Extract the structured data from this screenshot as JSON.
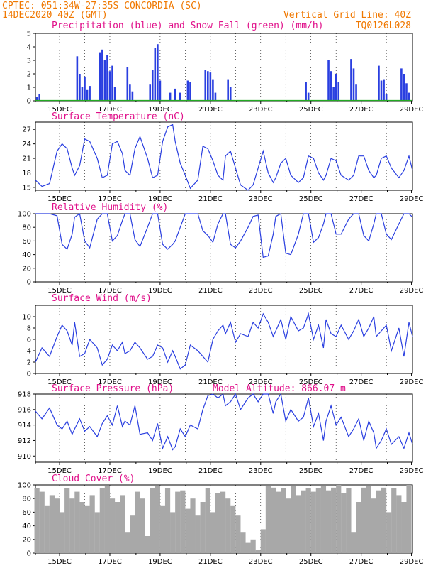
{
  "header": {
    "line1_left": "CPTEC:  051:34W-27:35S  CONCORDIA (SC)",
    "line2_left": "14DEC2020 40Z (GMT)",
    "line1_right": "Vertical Grid Line: 40Z",
    "line2_right": "TQ0126L028"
  },
  "colors": {
    "header": "#f07800",
    "panel_title": "#e0108a",
    "line": "#2a3fe0",
    "precip": "#2a3fe0",
    "snow": "#22aa22",
    "cloud": "#a8a8a8"
  },
  "x_ticks": [
    "15DEC",
    "17DEC",
    "19DEC",
    "21DEC",
    "23DEC",
    "25DEC",
    "27DEC",
    "29DEC"
  ],
  "x_tick_days": [
    15,
    17,
    19,
    21,
    23,
    25,
    27,
    29
  ],
  "chart_data": [
    {
      "type": "bar",
      "id": "precip",
      "title": "Precipitation (blue) and Snow Fall (green) (mm/h)",
      "xlim": [
        14.04,
        29.04
      ],
      "ylim": [
        0,
        5
      ],
      "yticks": [
        0,
        1,
        2,
        3,
        4,
        5
      ],
      "series": [
        {
          "name": "Precipitation",
          "x": [
            14.1,
            14.2,
            15.7,
            15.8,
            15.9,
            16.0,
            16.1,
            16.2,
            16.6,
            16.7,
            16.8,
            16.9,
            17.0,
            17.1,
            17.2,
            17.7,
            17.8,
            17.9,
            18.6,
            18.7,
            18.8,
            18.9,
            19.0,
            19.4,
            19.6,
            19.8,
            20.1,
            20.2,
            20.8,
            20.9,
            21.0,
            21.1,
            21.2,
            21.7,
            21.8,
            24.8,
            24.9,
            25.7,
            25.8,
            25.9,
            26.0,
            26.1,
            26.6,
            26.7,
            26.8,
            27.7,
            27.8,
            27.9,
            28.0,
            28.6,
            28.7,
            28.8,
            28.9
          ],
          "values": [
            0.3,
            0.5,
            3.3,
            2.0,
            1.0,
            1.8,
            0.8,
            1.1,
            3.6,
            3.8,
            3.0,
            3.4,
            2.2,
            2.6,
            1.0,
            2.5,
            1.2,
            0.7,
            1.2,
            2.3,
            3.9,
            4.2,
            1.5,
            0.6,
            0.9,
            0.6,
            1.5,
            1.4,
            2.3,
            2.2,
            2.1,
            1.6,
            0.6,
            1.6,
            1.0,
            1.4,
            0.6,
            3.0,
            2.2,
            1.0,
            2.0,
            1.4,
            3.1,
            2.4,
            1.2,
            2.6,
            1.5,
            1.6,
            0.5,
            2.4,
            2.0,
            1.3,
            0.6
          ]
        },
        {
          "name": "Snow Fall",
          "x": [],
          "values": []
        }
      ]
    },
    {
      "type": "line",
      "id": "temp",
      "title": "Surface Temperature (nC)",
      "xlim": [
        14.04,
        29.04
      ],
      "ylim": [
        14.4,
        28.5
      ],
      "yticks": [
        15,
        18,
        21,
        24,
        27
      ],
      "series": [
        {
          "name": "Surface Temperature",
          "x": [
            14.04,
            14.3,
            14.6,
            14.9,
            15.1,
            15.3,
            15.5,
            15.6,
            15.8,
            16.0,
            16.2,
            16.5,
            16.7,
            16.9,
            17.1,
            17.3,
            17.5,
            17.6,
            17.8,
            18.0,
            18.2,
            18.5,
            18.7,
            18.9,
            19.1,
            19.3,
            19.5,
            19.6,
            19.8,
            20.0,
            20.2,
            20.5,
            20.7,
            20.9,
            21.1,
            21.3,
            21.5,
            21.6,
            21.8,
            22.0,
            22.2,
            22.5,
            22.7,
            22.9,
            23.1,
            23.3,
            23.5,
            23.6,
            23.8,
            24.0,
            24.2,
            24.5,
            24.7,
            24.9,
            25.1,
            25.3,
            25.5,
            25.6,
            25.8,
            26.0,
            26.2,
            26.5,
            26.7,
            26.9,
            27.1,
            27.3,
            27.5,
            27.6,
            27.8,
            28.0,
            28.2,
            28.5,
            28.7,
            28.9,
            29.04
          ],
          "values": [
            16.5,
            15.2,
            15.8,
            22.5,
            24.0,
            23.0,
            19.0,
            17.5,
            19.5,
            25.0,
            24.5,
            21.0,
            17.0,
            17.5,
            24.0,
            24.5,
            22.0,
            18.5,
            17.5,
            23.0,
            25.5,
            21.0,
            17.0,
            17.5,
            24.5,
            27.5,
            28.0,
            24.5,
            20.0,
            17.5,
            14.8,
            16.5,
            23.5,
            23.0,
            20.5,
            17.5,
            16.5,
            21.5,
            22.5,
            19.0,
            15.5,
            14.3,
            15.5,
            19.0,
            22.5,
            18.0,
            16.0,
            17.0,
            20.0,
            21.0,
            17.5,
            16.0,
            17.0,
            21.5,
            21.0,
            18.0,
            16.5,
            17.5,
            21.0,
            20.5,
            17.5,
            16.5,
            17.5,
            21.5,
            21.5,
            18.5,
            17.0,
            17.5,
            21.0,
            21.5,
            19.0,
            17.0,
            18.5,
            21.5,
            18.5
          ]
        }
      ]
    },
    {
      "type": "line",
      "id": "rh",
      "title": "Relative Humidity (%)",
      "xlim": [
        14.04,
        29.04
      ],
      "ylim": [
        0,
        100
      ],
      "yticks": [
        0,
        20,
        40,
        60,
        80,
        100
      ],
      "series": [
        {
          "name": "Relative Humidity",
          "x": [
            14.04,
            14.3,
            14.6,
            14.9,
            15.1,
            15.3,
            15.5,
            15.6,
            15.8,
            16.0,
            16.2,
            16.5,
            16.7,
            16.9,
            17.1,
            17.3,
            17.5,
            17.6,
            17.8,
            18.0,
            18.2,
            18.5,
            18.7,
            18.9,
            19.1,
            19.3,
            19.5,
            19.6,
            19.8,
            20.0,
            20.2,
            20.5,
            20.7,
            20.9,
            21.1,
            21.3,
            21.5,
            21.6,
            21.8,
            22.0,
            22.2,
            22.5,
            22.7,
            22.9,
            23.1,
            23.3,
            23.5,
            23.6,
            23.8,
            24.0,
            24.2,
            24.5,
            24.7,
            24.9,
            25.1,
            25.3,
            25.5,
            25.6,
            25.8,
            26.0,
            26.2,
            26.5,
            26.7,
            26.9,
            27.1,
            27.3,
            27.5,
            27.6,
            27.8,
            28.0,
            28.2,
            28.5,
            28.7,
            28.9,
            29.04
          ],
          "values": [
            100,
            100,
            100,
            97,
            55,
            48,
            70,
            95,
            100,
            60,
            50,
            92,
            100,
            100,
            60,
            68,
            90,
            100,
            100,
            62,
            52,
            80,
            100,
            100,
            55,
            48,
            55,
            60,
            80,
            100,
            100,
            100,
            75,
            68,
            58,
            85,
            100,
            100,
            55,
            50,
            60,
            80,
            96,
            98,
            36,
            38,
            70,
            96,
            100,
            42,
            40,
            70,
            100,
            100,
            58,
            65,
            85,
            100,
            100,
            70,
            70,
            92,
            100,
            100,
            68,
            60,
            85,
            100,
            100,
            70,
            62,
            85,
            100,
            100,
            95
          ]
        }
      ]
    },
    {
      "type": "line",
      "id": "wind",
      "title": "Surface Wind (m/s)",
      "xlim": [
        14.04,
        29.04
      ],
      "ylim": [
        0,
        12
      ],
      "yticks": [
        0,
        2,
        4,
        6,
        8,
        10
      ],
      "series": [
        {
          "name": "Surface Wind",
          "x": [
            14.04,
            14.3,
            14.6,
            14.9,
            15.1,
            15.3,
            15.5,
            15.6,
            15.8,
            16.0,
            16.2,
            16.5,
            16.7,
            16.9,
            17.1,
            17.3,
            17.5,
            17.6,
            17.8,
            18.0,
            18.2,
            18.5,
            18.7,
            18.9,
            19.1,
            19.3,
            19.5,
            19.6,
            19.8,
            20.0,
            20.2,
            20.5,
            20.7,
            20.9,
            21.1,
            21.3,
            21.5,
            21.6,
            21.8,
            22.0,
            22.2,
            22.5,
            22.7,
            22.9,
            23.1,
            23.3,
            23.5,
            23.6,
            23.8,
            24.0,
            24.2,
            24.5,
            24.7,
            24.9,
            25.1,
            25.3,
            25.5,
            25.6,
            25.8,
            26.0,
            26.2,
            26.5,
            26.7,
            26.9,
            27.1,
            27.3,
            27.5,
            27.6,
            27.8,
            28.0,
            28.2,
            28.5,
            28.7,
            28.9,
            29.04
          ],
          "values": [
            2.0,
            4.5,
            3.0,
            6.5,
            8.5,
            7.5,
            5.0,
            9.0,
            3.0,
            3.5,
            6.0,
            4.5,
            1.5,
            2.5,
            5.0,
            4.0,
            5.5,
            3.5,
            4.0,
            5.5,
            4.5,
            2.5,
            3.0,
            5.0,
            4.5,
            2.0,
            4.0,
            3.0,
            0.8,
            1.5,
            5.0,
            4.0,
            3.0,
            2.0,
            6.0,
            7.5,
            8.5,
            7.0,
            9.0,
            5.5,
            7.0,
            6.5,
            9.0,
            8.0,
            10.5,
            9.0,
            6.5,
            7.5,
            9.5,
            6.0,
            10.0,
            7.5,
            8.0,
            10.5,
            6.0,
            8.5,
            4.5,
            9.5,
            7.0,
            6.5,
            8.5,
            6.0,
            7.5,
            9.5,
            6.5,
            8.0,
            10.0,
            6.5,
            7.5,
            8.5,
            4.0,
            8.0,
            3.0,
            9.0,
            6.5
          ]
        }
      ]
    },
    {
      "type": "line",
      "id": "press",
      "title": "Surface Pressure (hPa)",
      "annotation": "Model Altitude: 866.07 m",
      "xlim": [
        14.04,
        29.04
      ],
      "ylim": [
        909.2,
        918
      ],
      "yticks": [
        910,
        912,
        914,
        916,
        918
      ],
      "series": [
        {
          "name": "Surface Pressure",
          "x": [
            14.04,
            14.3,
            14.6,
            14.9,
            15.1,
            15.3,
            15.5,
            15.6,
            15.8,
            16.0,
            16.2,
            16.5,
            16.7,
            16.9,
            17.1,
            17.3,
            17.5,
            17.6,
            17.8,
            18.0,
            18.2,
            18.5,
            18.7,
            18.9,
            19.1,
            19.3,
            19.5,
            19.6,
            19.8,
            20.0,
            20.2,
            20.5,
            20.7,
            20.9,
            21.1,
            21.3,
            21.5,
            21.6,
            21.8,
            22.0,
            22.2,
            22.5,
            22.7,
            22.9,
            23.1,
            23.3,
            23.5,
            23.6,
            23.8,
            24.0,
            24.2,
            24.5,
            24.7,
            24.9,
            25.1,
            25.3,
            25.5,
            25.6,
            25.8,
            26.0,
            26.2,
            26.5,
            26.7,
            26.9,
            27.1,
            27.3,
            27.5,
            27.6,
            27.8,
            28.0,
            28.2,
            28.5,
            28.7,
            28.9,
            29.04
          ],
          "values": [
            915.8,
            914.8,
            916.2,
            914.0,
            913.5,
            914.5,
            912.8,
            913.5,
            914.8,
            913.2,
            913.8,
            912.5,
            914.2,
            915.2,
            914.0,
            916.5,
            913.8,
            914.5,
            914.0,
            916.5,
            912.8,
            913.0,
            912.0,
            914.2,
            911.0,
            912.5,
            910.8,
            911.2,
            913.5,
            912.5,
            914.0,
            913.5,
            916.0,
            917.8,
            918.0,
            917.5,
            918.0,
            916.5,
            917.0,
            918.0,
            916.0,
            917.5,
            918.5,
            917.0,
            918.5,
            918.0,
            915.5,
            917.0,
            918.0,
            914.5,
            916.0,
            914.5,
            915.0,
            917.5,
            913.8,
            915.5,
            912.0,
            914.5,
            916.5,
            914.0,
            915.0,
            912.5,
            913.5,
            914.8,
            912.0,
            914.5,
            913.0,
            911.0,
            912.0,
            913.5,
            911.5,
            912.5,
            911.0,
            913.0,
            911.5
          ]
        }
      ]
    },
    {
      "type": "bar",
      "id": "cloud",
      "title": "Cloud Cover (%)",
      "xlim": [
        14.04,
        29.04
      ],
      "ylim": [
        0,
        100
      ],
      "yticks": [
        0,
        20,
        40,
        60,
        80,
        100
      ],
      "series": [
        {
          "name": "Cloud Cover",
          "x": [
            14.1,
            14.3,
            14.5,
            14.7,
            14.9,
            15.1,
            15.3,
            15.5,
            15.7,
            15.9,
            16.1,
            16.3,
            16.5,
            16.7,
            16.9,
            17.1,
            17.3,
            17.5,
            17.7,
            17.9,
            18.1,
            18.3,
            18.5,
            18.7,
            18.9,
            19.1,
            19.3,
            19.5,
            19.7,
            19.9,
            20.1,
            20.3,
            20.5,
            20.7,
            20.9,
            21.1,
            21.3,
            21.5,
            21.7,
            21.9,
            22.1,
            22.3,
            22.5,
            22.7,
            22.9,
            23.1,
            23.3,
            23.5,
            23.7,
            23.9,
            24.1,
            24.3,
            24.5,
            24.7,
            24.9,
            25.1,
            25.3,
            25.5,
            25.7,
            25.9,
            26.1,
            26.3,
            26.5,
            26.7,
            26.9,
            27.1,
            27.3,
            27.5,
            27.7,
            27.9,
            28.1,
            28.3,
            28.5,
            28.7,
            28.9
          ],
          "values": [
            95,
            90,
            70,
            85,
            80,
            60,
            95,
            80,
            90,
            75,
            70,
            85,
            60,
            95,
            98,
            80,
            75,
            85,
            30,
            55,
            90,
            80,
            25,
            95,
            98,
            70,
            95,
            60,
            90,
            92,
            65,
            80,
            55,
            75,
            95,
            60,
            88,
            90,
            80,
            70,
            55,
            30,
            15,
            20,
            5,
            35,
            98,
            96,
            90,
            95,
            80,
            98,
            85,
            92,
            95,
            90,
            95,
            98,
            92,
            96,
            100,
            88,
            95,
            30,
            75,
            96,
            98,
            80,
            92,
            96,
            60,
            95,
            85,
            75,
            100
          ]
        }
      ]
    }
  ],
  "wind_arrows": {
    "directions_deg": []
  }
}
